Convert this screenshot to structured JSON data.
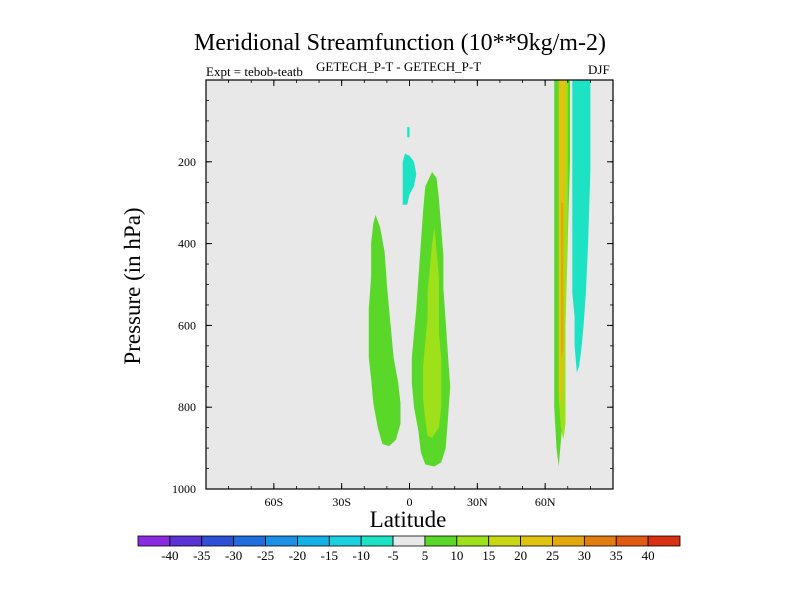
{
  "chart_data": {
    "type": "contour",
    "title": "Meridional Streamfunction (10**9kg/m-2)",
    "left_label": "Expt = tebob-teatb",
    "center_label": "GETECH_P-T - GETECH_P-T",
    "right_label": "DJF",
    "xlabel": "Latitude",
    "ylabel": "Pressure (in hPa)",
    "xlim": [
      -90,
      90
    ],
    "ylim": [
      1000,
      0
    ],
    "xticks": [
      {
        "value": -60,
        "label": "60S"
      },
      {
        "value": -30,
        "label": "30S"
      },
      {
        "value": 0,
        "label": "0"
      },
      {
        "value": 30,
        "label": "30N"
      },
      {
        "value": 60,
        "label": "60N"
      }
    ],
    "yticks": [
      {
        "value": 200,
        "label": "200"
      },
      {
        "value": 400,
        "label": "400"
      },
      {
        "value": 600,
        "label": "600"
      },
      {
        "value": 800,
        "label": "800"
      },
      {
        "value": 1000,
        "label": "1000"
      }
    ],
    "colorbar": {
      "labels": [
        "-40",
        "-35",
        "-30",
        "-25",
        "-20",
        "-15",
        "-10",
        "-5",
        "5",
        "10",
        "15",
        "20",
        "25",
        "30",
        "35",
        "40"
      ],
      "colors": [
        "#8a2be2",
        "#5a32d6",
        "#2e4fd8",
        "#1f6ee0",
        "#1d8fe6",
        "#16b0e8",
        "#1ccfe0",
        "#1de3c4",
        "#e8e8e8",
        "#5ad82a",
        "#9ee01a",
        "#c8d814",
        "#e0c210",
        "#e2a80e",
        "#e07c10",
        "#e05a12",
        "#d83010"
      ]
    },
    "regions": [
      {
        "level": 5,
        "color": "#5ad82a",
        "points": [
          [
            -15,
            330
          ],
          [
            -13,
            360
          ],
          [
            -11,
            420
          ],
          [
            -10,
            500
          ],
          [
            -9,
            560
          ],
          [
            -8,
            620
          ],
          [
            -7,
            680
          ],
          [
            -5,
            740
          ],
          [
            -4,
            790
          ],
          [
            -4,
            840
          ],
          [
            -6,
            880
          ],
          [
            -9,
            895
          ],
          [
            -12,
            890
          ],
          [
            -14,
            850
          ],
          [
            -16,
            790
          ],
          [
            -17,
            730
          ],
          [
            -18,
            680
          ],
          [
            -18,
            620
          ],
          [
            -18,
            560
          ],
          [
            -17,
            480
          ],
          [
            -17,
            400
          ],
          [
            -16,
            350
          ]
        ]
      },
      {
        "level": 5,
        "color": "#5ad82a",
        "points": [
          [
            10,
            225
          ],
          [
            12,
            240
          ],
          [
            13,
            290
          ],
          [
            14,
            360
          ],
          [
            15,
            430
          ],
          [
            15,
            510
          ],
          [
            16,
            590
          ],
          [
            17,
            670
          ],
          [
            18,
            750
          ],
          [
            17,
            830
          ],
          [
            16,
            900
          ],
          [
            14,
            935
          ],
          [
            11,
            945
          ],
          [
            7,
            940
          ],
          [
            5,
            910
          ],
          [
            4,
            860
          ],
          [
            2,
            800
          ],
          [
            1,
            740
          ],
          [
            1,
            680
          ],
          [
            2,
            620
          ],
          [
            3,
            560
          ],
          [
            4,
            480
          ],
          [
            5,
            400
          ],
          [
            6,
            320
          ],
          [
            7,
            260
          ]
        ]
      },
      {
        "level": 10,
        "color": "#9ee01a",
        "points": [
          [
            11,
            360
          ],
          [
            12,
            420
          ],
          [
            13,
            480
          ],
          [
            13,
            560
          ],
          [
            13,
            620
          ],
          [
            14,
            680
          ],
          [
            14,
            740
          ],
          [
            14,
            800
          ],
          [
            13,
            850
          ],
          [
            10,
            875
          ],
          [
            8,
            870
          ],
          [
            7,
            830
          ],
          [
            6,
            780
          ],
          [
            6,
            700
          ],
          [
            7,
            640
          ],
          [
            8,
            580
          ],
          [
            8,
            520
          ],
          [
            9,
            460
          ],
          [
            10,
            400
          ]
        ]
      },
      {
        "level": -5,
        "color": "#1de3c4",
        "points": [
          [
            -1,
            115
          ],
          [
            0,
            115
          ],
          [
            0,
            140
          ],
          [
            -1,
            140
          ]
        ]
      },
      {
        "level": -5,
        "color": "#1de3c4",
        "points": [
          [
            -2,
            180
          ],
          [
            0,
            185
          ],
          [
            2,
            200
          ],
          [
            3,
            230
          ],
          [
            2,
            260
          ],
          [
            0,
            280
          ],
          [
            -1,
            305
          ],
          [
            -3,
            305
          ],
          [
            -3,
            270
          ],
          [
            -3,
            230
          ],
          [
            -3,
            200
          ]
        ]
      },
      {
        "level": -5,
        "color": "#1de3c4",
        "points": [
          [
            72,
            0
          ],
          [
            80,
            0
          ],
          [
            80,
            220
          ],
          [
            79,
            400
          ],
          [
            78,
            520
          ],
          [
            77,
            600
          ],
          [
            76,
            660
          ],
          [
            75,
            700
          ],
          [
            74,
            715
          ],
          [
            73,
            650
          ],
          [
            73,
            580
          ],
          [
            72,
            520
          ],
          [
            72,
            440
          ],
          [
            72,
            300
          ],
          [
            72,
            150
          ]
        ]
      },
      {
        "level": 5,
        "color": "#5ad82a",
        "points": [
          [
            64,
            0
          ],
          [
            71,
            0
          ],
          [
            71,
            200
          ],
          [
            70,
            380
          ],
          [
            69,
            560
          ],
          [
            69,
            700
          ],
          [
            68,
            810
          ],
          [
            67,
            880
          ],
          [
            66,
            945
          ],
          [
            65,
            900
          ],
          [
            64,
            800
          ],
          [
            64,
            600
          ],
          [
            64,
            400
          ],
          [
            64,
            200
          ]
        ]
      },
      {
        "level": 10,
        "color": "#9ee01a",
        "points": [
          [
            66,
            0
          ],
          [
            70,
            0
          ],
          [
            70,
            200
          ],
          [
            70,
            400
          ],
          [
            69,
            600
          ],
          [
            69,
            780
          ],
          [
            69,
            840
          ],
          [
            68,
            880
          ],
          [
            67,
            850
          ],
          [
            66,
            780
          ],
          [
            66,
            600
          ],
          [
            66,
            400
          ],
          [
            66,
            200
          ]
        ]
      },
      {
        "level": 20,
        "color": "#e0c210",
        "points": [
          [
            66,
            0
          ],
          [
            69,
            0
          ],
          [
            69,
            200
          ],
          [
            68,
            400
          ],
          [
            68,
            560
          ],
          [
            68,
            640
          ],
          [
            68,
            700
          ],
          [
            67,
            800
          ],
          [
            67,
            800
          ],
          [
            66,
            760
          ],
          [
            66,
            700
          ],
          [
            66,
            600
          ],
          [
            66,
            500
          ],
          [
            66,
            300
          ],
          [
            66,
            150
          ]
        ]
      },
      {
        "level": 25,
        "color": "#e2a80e",
        "points": [
          [
            67,
            300
          ],
          [
            68,
            300
          ],
          [
            68,
            540
          ],
          [
            68,
            660
          ],
          [
            67,
            680
          ],
          [
            67,
            560
          ],
          [
            67,
            420
          ]
        ]
      }
    ]
  }
}
